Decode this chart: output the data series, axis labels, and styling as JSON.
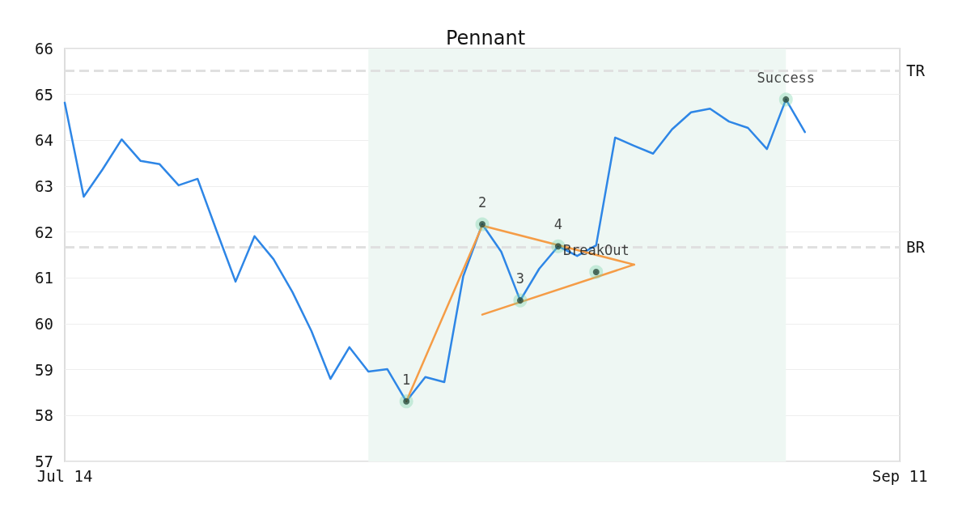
{
  "chart_data": {
    "type": "line",
    "title": "Pennant",
    "categories": [
      "Jul 14",
      null,
      null,
      null,
      null,
      null,
      null,
      null,
      null,
      null,
      null,
      null,
      null,
      null,
      null,
      null,
      null,
      null,
      null,
      null,
      null,
      null,
      null,
      null,
      null,
      null,
      null,
      null,
      null,
      null,
      null,
      null,
      null,
      null,
      null,
      null,
      null,
      null,
      null,
      null,
      null,
      null,
      null,
      null,
      "Sep 11"
    ],
    "series": [
      {
        "color": "#2e86e6",
        "values": [
          64.82,
          62.77,
          63.37,
          64.02,
          63.55,
          63.48,
          63.02,
          63.16,
          62.03,
          60.92,
          61.91,
          61.41,
          60.69,
          59.84,
          58.8,
          59.49,
          58.96,
          59.01,
          58.31,
          58.84,
          58.73,
          61.04,
          62.17,
          61.57,
          60.51,
          61.2,
          61.69,
          61.48,
          61.71,
          64.06,
          63.88,
          63.71,
          64.24,
          64.61,
          64.69,
          64.41,
          64.27,
          63.81,
          64.89,
          64.18,
          null,
          null,
          null,
          null,
          null
        ]
      },
      {
        "color": "#f59c46",
        "values": [
          null,
          null,
          null,
          null,
          null,
          null,
          null,
          null,
          null,
          null,
          null,
          null,
          null,
          null,
          null,
          null,
          null,
          null,
          58.31,
          null,
          null,
          null,
          62.14,
          null,
          null,
          null,
          null,
          null,
          null,
          null,
          61.29,
          null,
          null,
          null,
          null,
          null,
          null,
          null,
          null,
          null,
          null,
          null,
          null,
          null,
          null
        ]
      },
      {
        "color": "#f59c46",
        "values": [
          null,
          null,
          null,
          null,
          null,
          null,
          null,
          null,
          null,
          null,
          null,
          null,
          null,
          null,
          null,
          null,
          null,
          null,
          null,
          null,
          null,
          null,
          60.2,
          null,
          null,
          null,
          null,
          null,
          null,
          null,
          61.29,
          null,
          null,
          null,
          null,
          null,
          null,
          null,
          null,
          null,
          null,
          null,
          null,
          null,
          null
        ]
      },
      {
        "type": "scatter",
        "color": "#000000",
        "values": [
          null,
          null,
          null,
          null,
          null,
          null,
          null,
          null,
          null,
          null,
          null,
          null,
          null,
          null,
          null,
          null,
          null,
          null,
          58.31,
          null,
          null,
          null,
          62.17,
          null,
          60.51,
          null,
          61.69,
          null,
          61.13,
          null,
          null,
          null,
          null,
          null,
          null,
          null,
          null,
          null,
          64.89,
          null,
          null,
          null,
          null,
          null,
          null
        ]
      }
    ],
    "annotations": [
      "1",
      "2",
      "3",
      "4",
      "BreakOut",
      "Success"
    ],
    "ylim": [
      57,
      66
    ],
    "yticks": [
      57,
      58,
      59,
      60,
      61,
      62,
      63,
      64,
      65,
      66
    ],
    "ref_lines": [
      {
        "axis": "y",
        "value": 65.52,
        "label": "TR",
        "color": "#e0e0e0",
        "line_style": "dashed"
      },
      {
        "axis": "y",
        "value": 61.68,
        "label": "BR",
        "color": "#e0e0e0",
        "line_style": "dashed"
      }
    ],
    "grid": "y"
  }
}
